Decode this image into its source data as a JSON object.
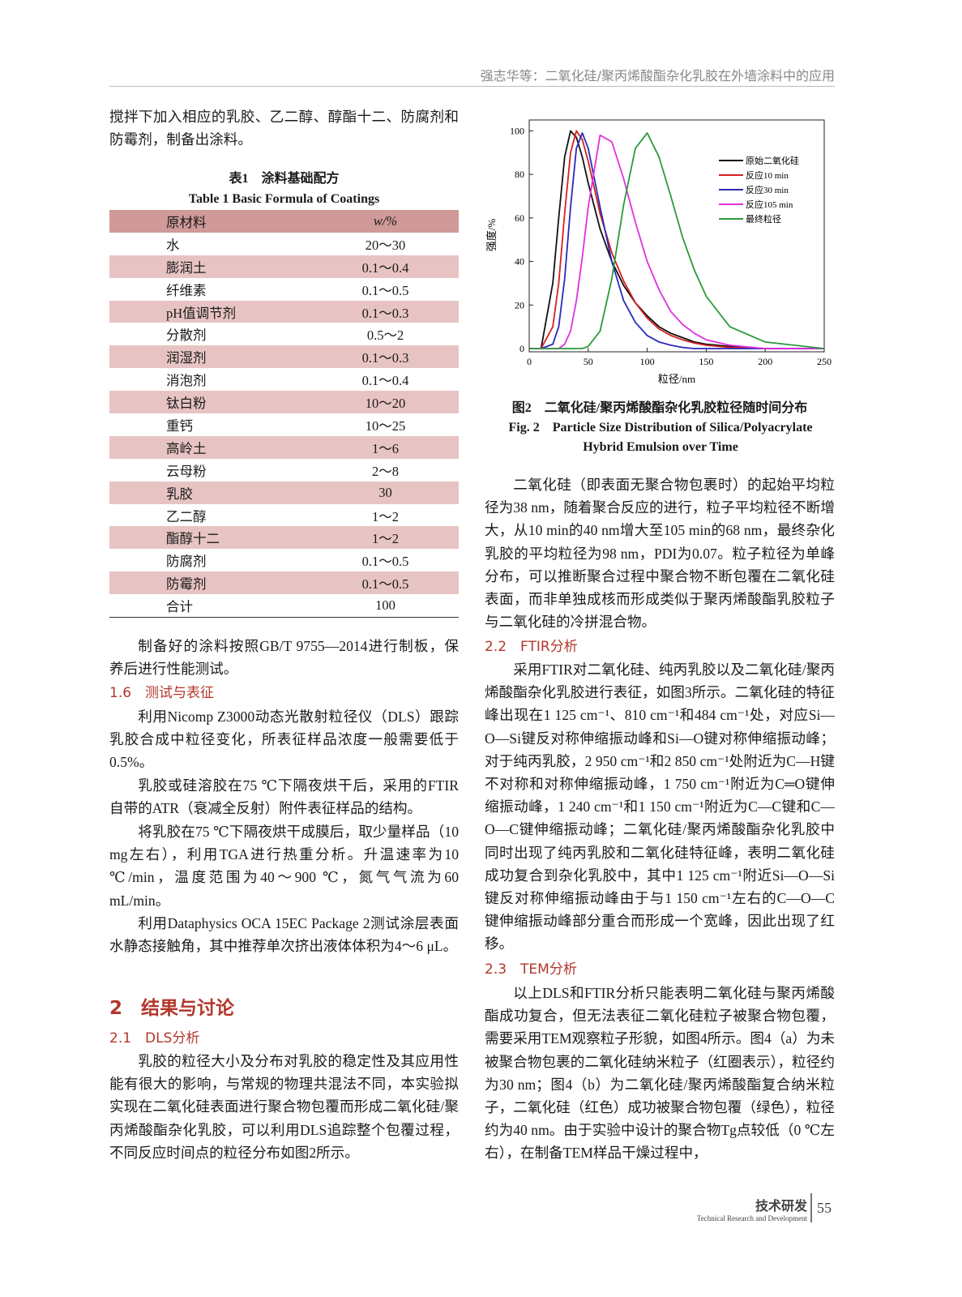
{
  "header": {
    "title": "强志华等：二氧化硅/聚丙烯酸酯杂化乳胶在外墙涂料中的应用"
  },
  "left": {
    "p0": "搅拌下加入相应的乳胶、乙二醇、醇酯十二、防腐剂和防霉剂，制备出涂料。",
    "table": {
      "title_cn": "表1　涂料基础配方",
      "title_en": "Table 1   Basic Formula of Coatings",
      "header": [
        "原材料",
        "w/%"
      ],
      "rows": [
        [
          "水",
          "20～30"
        ],
        [
          "膨润土",
          "0.1～0.4"
        ],
        [
          "纤维素",
          "0.1～0.5"
        ],
        [
          "pH值调节剂",
          "0.1～0.3"
        ],
        [
          "分散剂",
          "0.5～2"
        ],
        [
          "润湿剂",
          "0.1～0.3"
        ],
        [
          "消泡剂",
          "0.1～0.4"
        ],
        [
          "钛白粉",
          "10～20"
        ],
        [
          "重钙",
          "10～25"
        ],
        [
          "高岭土",
          "1～6"
        ],
        [
          "云母粉",
          "2～8"
        ],
        [
          "乳胶",
          "30"
        ],
        [
          "乙二醇",
          "1～2"
        ],
        [
          "酯醇十二",
          "1～2"
        ],
        [
          "防腐剂",
          "0.1～0.5"
        ],
        [
          "防霉剂",
          "0.1～0.5"
        ],
        [
          "合计",
          "100"
        ]
      ]
    },
    "p1": "制备好的涂料按照GB/T 9755—2014进行制板，保养后进行性能测试。",
    "h16": "1.6　测试与表征",
    "p2": "利用Nicomp Z3000动态光散射粒径仪（DLS）跟踪乳胶合成中粒径变化，所表征样品浓度一般需要低于0.5%。",
    "p3": "乳胶或硅溶胶在75 ℃下隔夜烘干后，采用的FTIR自带的ATR（衰减全反射）附件表征样品的结构。",
    "p4": "将乳胶在75 ℃下隔夜烘干成膜后，取少量样品（10 mg左右），利用TGA进行热重分析。升温速率为10 ℃/min，温度范围为40～900 ℃，氮气气流为60 mL/min。",
    "p5": "利用Dataphysics OCA 15EC Package 2测试涂层表面水静态接触角，其中推荐单次挤出液体体积为4～6 μL。",
    "h2": "2　结果与讨论",
    "h21": "2.1　DLS分析",
    "p6": "乳胶的粒径大小及分布对乳胶的稳定性及其应用性能有很大的影响，与常规的物理共混法不同，本实验拟实现在二氧化硅表面进行聚合物包覆而形成二氧化硅/聚丙烯酸酯杂化乳胶，可以利用DLS追踪整个包覆过程，不同反应时间点的粒径分布如图2所示。"
  },
  "chart_data": {
    "type": "line",
    "y_label": "强度/%",
    "x_label": "粒径/nm",
    "x": [
      0,
      10,
      20,
      25,
      30,
      35,
      40,
      45,
      50,
      60,
      70,
      80,
      90,
      100,
      110,
      120,
      130,
      140,
      150,
      170,
      200,
      250
    ],
    "series": [
      {
        "name": "原始二氧化硅",
        "color": "#111111",
        "values": [
          0,
          0,
          30,
          60,
          88,
          100,
          97,
          88,
          76,
          55,
          40,
          29,
          21,
          15,
          10,
          7,
          5,
          3,
          2,
          1,
          0,
          0
        ]
      },
      {
        "name": "反应10 min",
        "color": "#d62020",
        "values": [
          0,
          0,
          10,
          30,
          62,
          90,
          100,
          96,
          86,
          62,
          44,
          31,
          21,
          14,
          9,
          6,
          4,
          2.5,
          1.5,
          0.5,
          0,
          0
        ]
      },
      {
        "name": "反应30 min",
        "color": "#2a2ab8",
        "values": [
          0,
          0,
          2,
          10,
          32,
          65,
          92,
          99,
          92,
          65,
          40,
          22,
          12,
          6,
          3,
          1.5,
          0.5,
          0,
          0,
          0,
          0,
          0
        ]
      },
      {
        "name": "反应105 min",
        "color": "#e030e0",
        "values": [
          0,
          0,
          0,
          0,
          2,
          8,
          22,
          42,
          65,
          98,
          95,
          78,
          58,
          40,
          27,
          17,
          11,
          7,
          4,
          1.5,
          0,
          0
        ]
      },
      {
        "name": "最终粒径",
        "color": "#2a9a3a",
        "values": [
          0,
          0,
          0,
          0,
          0,
          0,
          0,
          0,
          1,
          8,
          32,
          66,
          92,
          99,
          88,
          70,
          51,
          36,
          24,
          10,
          3,
          0
        ]
      }
    ],
    "xlim": [
      0,
      250
    ],
    "ylim": [
      -1.5,
      105
    ],
    "xticks": [
      0,
      50,
      100,
      150,
      200,
      250
    ],
    "yticks": [
      0,
      20,
      40,
      60,
      80,
      100
    ],
    "legend": "upper right"
  },
  "right": {
    "fig_cn": "图2　二氧化硅/聚丙烯酸酯杂化乳胶粒径随时间分布",
    "fig_en": "Fig. 2　Particle Size Distribution of Silica/Polyacrylate Hybrid Emulsion over Time",
    "p0": "二氧化硅（即表面无聚合物包裹时）的起始平均粒径为38 nm，随着聚合反应的进行，粒子平均粒径不断增大，从10 min的40 nm增大至105 min的68 nm，最终杂化乳胶的平均粒径为98 nm，PDI为0.07。粒子粒径为单峰分布，可以推断聚合过程中聚合物不断包覆在二氧化硅表面，而非单独成核而形成类似于聚丙烯酸酯乳胶粒子与二氧化硅的冷拼混合物。",
    "h22": "2.2　FTIR分析",
    "p1": "采用FTIR对二氧化硅、纯丙乳胶以及二氧化硅/聚丙烯酸酯杂化乳胶进行表征，如图3所示。二氧化硅的特征峰出现在1 125 cm⁻¹、810 cm⁻¹和484 cm⁻¹处，对应Si—O—Si键反对称伸缩振动峰和Si—O键对称伸缩振动峰；对于纯丙乳胶，2 950 cm⁻¹和2 850 cm⁻¹处附近为C—H键不对称和对称伸缩振动峰，1 750 cm⁻¹附近为C═O键伸缩振动峰，1 240 cm⁻¹和1 150 cm⁻¹附近为C—C键和C—O—C键伸缩振动峰；二氧化硅/聚丙烯酸酯杂化乳胶中同时出现了纯丙乳胶和二氧化硅特征峰，表明二氧化硅成功复合到杂化乳胶中，其中1 125 cm⁻¹附近Si—O—Si键反对称伸缩振动峰由于与1 150 cm⁻¹左右的C—O—C键伸缩振动峰部分重合而形成一个宽峰，因此出现了红移。",
    "h23": "2.3　TEM分析",
    "p2": "以上DLS和FTIR分析只能表明二氧化硅与聚丙烯酸酯成功复合，但无法表征二氧化硅粒子被聚合物包覆，需要采用TEM观察粒子形貌，如图4所示。图4（a）为未被聚合物包裹的二氧化硅纳米粒子（红圈表示），粒径约为30 nm；图4（b）为二氧化硅/聚丙烯酸酯复合纳米粒子，二氧化硅（红色）成功被聚合物包覆（绿色），粒径约为40 nm。由于实验中设计的聚合物Tg点较低（0 ℃左右），在制备TEM样品干燥过程中，"
  },
  "footer": {
    "section_cn": "技术研发",
    "section_en": "Technical Research and Development",
    "page": "55"
  }
}
